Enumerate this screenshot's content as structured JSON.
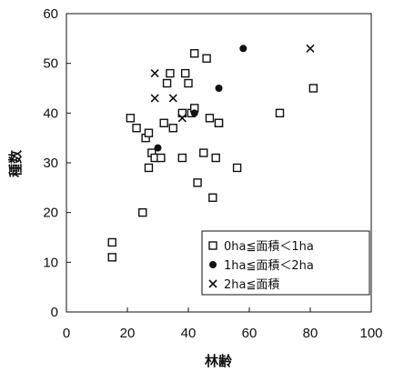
{
  "chart_data": {
    "type": "scatter",
    "xlabel": "林齢",
    "ylabel": "種数",
    "xlim": [
      0,
      100
    ],
    "ylim": [
      0,
      60
    ],
    "x_ticks": [
      "0",
      "20",
      "40",
      "60",
      "80",
      "100"
    ],
    "y_ticks": [
      "0",
      "10",
      "20",
      "30",
      "40",
      "50",
      "60"
    ],
    "grid": false,
    "legend_position": "bottom-right",
    "series": [
      {
        "name": "0ha≦面積＜1ha",
        "marker": "open-square",
        "color": "#111111",
        "x": [
          15,
          15,
          21,
          23,
          25,
          26,
          27,
          27,
          28,
          29,
          31,
          32,
          33,
          34,
          35,
          38,
          38,
          39,
          40,
          41,
          42,
          42,
          43,
          45,
          46,
          47,
          48,
          49,
          50,
          50,
          56,
          70,
          81
        ],
        "y": [
          14,
          11,
          39,
          37,
          20,
          35,
          36,
          29,
          32,
          31,
          31,
          38,
          46,
          48,
          37,
          31,
          40,
          48,
          46,
          40,
          52,
          41,
          26,
          32,
          51,
          39,
          23,
          31,
          38,
          38,
          29,
          40,
          45
        ]
      },
      {
        "name": "1ha≦面積＜2ha",
        "marker": "filled-circle",
        "color": "#111111",
        "x": [
          30,
          42,
          50,
          58
        ],
        "y": [
          33,
          40,
          45,
          53
        ]
      },
      {
        "name": "2ha≦面積",
        "marker": "x",
        "color": "#111111",
        "x": [
          29,
          29,
          35,
          38,
          80
        ],
        "y": [
          48,
          43,
          43,
          39,
          53
        ]
      }
    ]
  }
}
